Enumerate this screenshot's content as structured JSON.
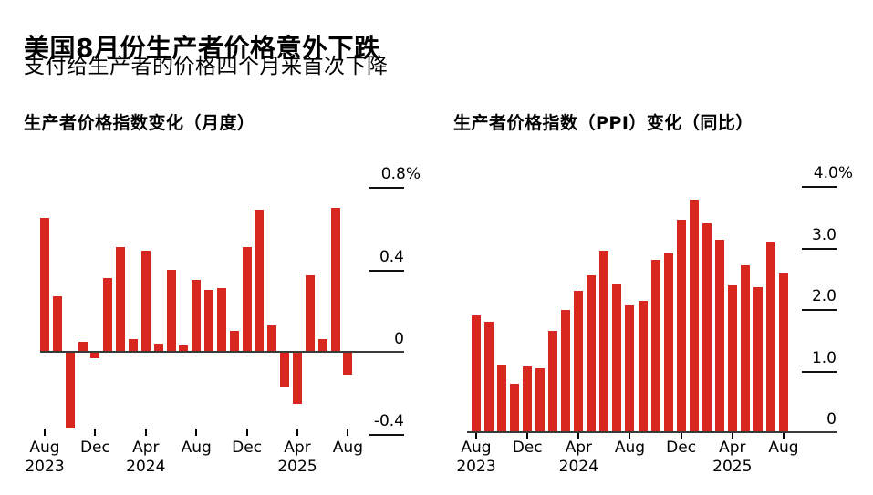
{
  "header": {
    "title": "美国8月份生产者价格意外下跌",
    "subtitle": "支付给生产者的价格四个月来首次下降"
  },
  "chart_data": [
    {
      "type": "bar",
      "title": "生产者价格指数变化（月度）",
      "unit": "%",
      "bar_color": "#d8271e",
      "categories": [
        "Aug 2023",
        "Sep 2023",
        "Oct 2023",
        "Nov 2023",
        "Dec 2023",
        "Jan 2024",
        "Feb 2024",
        "Mar 2024",
        "Apr 2024",
        "May 2024",
        "Jun 2024",
        "Jul 2024",
        "Aug 2024",
        "Sep 2024",
        "Oct 2024",
        "Nov 2024",
        "Dec 2024",
        "Jan 2025",
        "Feb 2025",
        "Mar 2025",
        "Apr 2025",
        "May 2025",
        "Jun 2025",
        "Jul 2025",
        "Aug 2025"
      ],
      "values": [
        0.65,
        0.27,
        -0.37,
        0.05,
        -0.03,
        0.36,
        0.51,
        0.06,
        0.49,
        0.04,
        0.4,
        0.03,
        0.35,
        0.3,
        0.31,
        0.1,
        0.51,
        0.69,
        0.13,
        -0.17,
        -0.25,
        0.37,
        0.06,
        0.7,
        -0.11
      ],
      "ylim": [
        -0.4,
        0.8
      ],
      "grid": false,
      "legend": "none",
      "y_ticks": [
        {
          "label": "0.8%",
          "value": 0.8
        },
        {
          "label": "0.4",
          "value": 0.4
        },
        {
          "label": "0",
          "value": 0
        },
        {
          "label": "-0.4",
          "value": -0.4
        }
      ],
      "x_ticks": [
        {
          "index": 0,
          "month": "Aug",
          "year": "2023"
        },
        {
          "index": 4,
          "month": "Dec",
          "year": ""
        },
        {
          "index": 8,
          "month": "Apr",
          "year": "2024"
        },
        {
          "index": 12,
          "month": "Aug",
          "year": ""
        },
        {
          "index": 16,
          "month": "Dec",
          "year": ""
        },
        {
          "index": 20,
          "month": "Apr",
          "year": "2025"
        },
        {
          "index": 24,
          "month": "Aug",
          "year": ""
        }
      ]
    },
    {
      "type": "bar",
      "title": "生产者价格指数（PPI）变化（同比）",
      "unit": "%",
      "bar_color": "#d8271e",
      "categories": [
        "Aug 2023",
        "Sep 2023",
        "Oct 2023",
        "Nov 2023",
        "Dec 2023",
        "Jan 2024",
        "Feb 2024",
        "Mar 2024",
        "Apr 2024",
        "May 2024",
        "Jun 2024",
        "Jul 2024",
        "Aug 2024",
        "Sep 2024",
        "Oct 2024",
        "Nov 2024",
        "Dec 2024",
        "Jan 2025",
        "Feb 2025",
        "Mar 2025",
        "Apr 2025",
        "May 2025",
        "Jun 2025",
        "Jul 2025",
        "Aug 2025"
      ],
      "values": [
        1.9,
        1.8,
        1.1,
        0.78,
        1.06,
        1.04,
        1.64,
        1.98,
        2.3,
        2.55,
        2.95,
        2.4,
        2.06,
        2.14,
        2.8,
        2.9,
        3.45,
        3.78,
        3.4,
        3.13,
        2.38,
        2.71,
        2.35,
        3.08,
        2.58
      ],
      "ylim": [
        0,
        4.0
      ],
      "grid": false,
      "legend": "none",
      "y_ticks": [
        {
          "label": "4.0%",
          "value": 4
        },
        {
          "label": "3.0",
          "value": 3
        },
        {
          "label": "2.0",
          "value": 2
        },
        {
          "label": "1.0",
          "value": 1
        },
        {
          "label": "0",
          "value": 0
        }
      ],
      "x_ticks": [
        {
          "index": 0,
          "month": "Aug",
          "year": "2023"
        },
        {
          "index": 4,
          "month": "Dec",
          "year": ""
        },
        {
          "index": 8,
          "month": "Apr",
          "year": "2024"
        },
        {
          "index": 12,
          "month": "Aug",
          "year": ""
        },
        {
          "index": 16,
          "month": "Dec",
          "year": ""
        },
        {
          "index": 20,
          "month": "Apr",
          "year": "2025"
        },
        {
          "index": 24,
          "month": "Aug",
          "year": ""
        }
      ]
    }
  ]
}
